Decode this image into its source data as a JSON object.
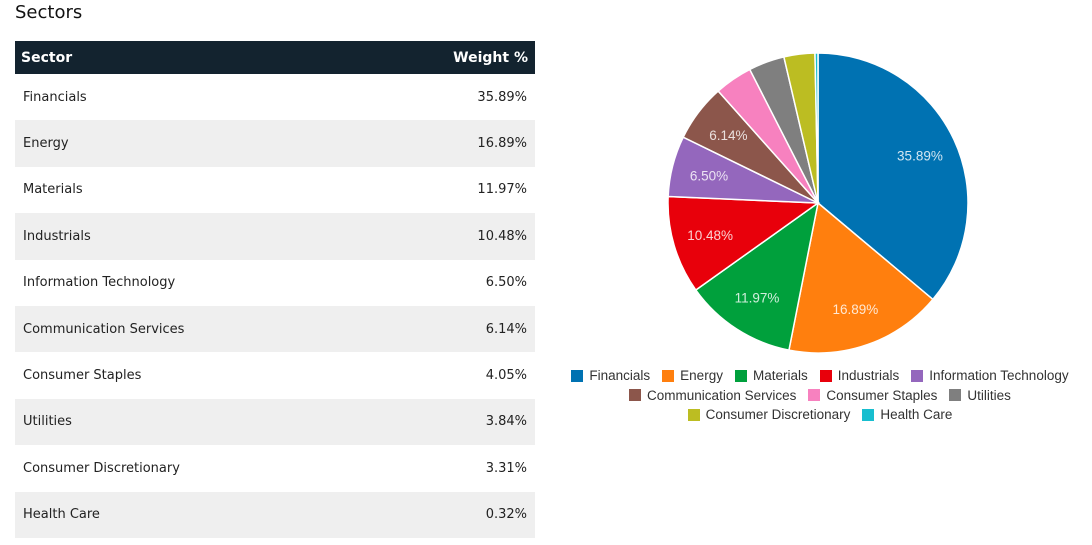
{
  "section_title": "Sectors",
  "table": {
    "header_sector": "Sector",
    "header_weight": "Weight %",
    "rows": [
      {
        "sector": "Financials",
        "weight": "35.89%"
      },
      {
        "sector": "Energy",
        "weight": "16.89%"
      },
      {
        "sector": "Materials",
        "weight": "11.97%"
      },
      {
        "sector": "Industrials",
        "weight": "10.48%"
      },
      {
        "sector": "Information Technology",
        "weight": "6.50%"
      },
      {
        "sector": "Communication Services",
        "weight": "6.14%"
      },
      {
        "sector": "Consumer Staples",
        "weight": "4.05%"
      },
      {
        "sector": "Utilities",
        "weight": "3.84%"
      },
      {
        "sector": "Consumer Discretionary",
        "weight": "3.31%"
      },
      {
        "sector": "Health Care",
        "weight": "0.32%"
      }
    ]
  },
  "chart_data": {
    "type": "pie",
    "legend_position": "bottom",
    "slices": [
      {
        "name": "Financials",
        "value": 35.89,
        "label": "35.89%",
        "color": "#0072b2"
      },
      {
        "name": "Energy",
        "value": 16.89,
        "label": "16.89%",
        "color": "#ff7f0e"
      },
      {
        "name": "Materials",
        "value": 11.97,
        "label": "11.97%",
        "color": "#00a03c"
      },
      {
        "name": "Industrials",
        "value": 10.48,
        "label": "10.48%",
        "color": "#e8000b"
      },
      {
        "name": "Information Technology",
        "value": 6.5,
        "label": "6.50%",
        "color": "#9467bd"
      },
      {
        "name": "Communication Services",
        "value": 6.14,
        "label": "6.14%",
        "color": "#8c564b"
      },
      {
        "name": "Consumer Staples",
        "value": 4.05,
        "label": "",
        "color": "#f781bf"
      },
      {
        "name": "Utilities",
        "value": 3.84,
        "label": "",
        "color": "#7f7f7f"
      },
      {
        "name": "Consumer Discretionary",
        "value": 3.31,
        "label": "",
        "color": "#bcbd22"
      },
      {
        "name": "Health Care",
        "value": 0.32,
        "label": "",
        "color": "#17becf"
      }
    ]
  }
}
